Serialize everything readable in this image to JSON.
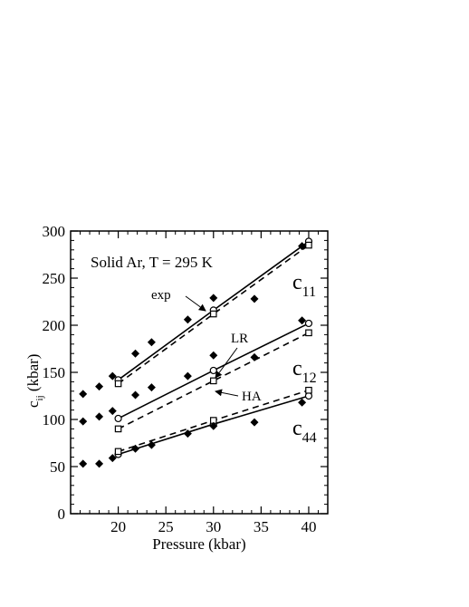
{
  "chart_data": {
    "type": "scatter",
    "annotation_title": "Solid Ar,  T = 295 K",
    "xlabel": "Pressure (kbar)",
    "ylabel_main": "c",
    "ylabel_sub": "ij",
    "ylabel_unit": " (kbar)",
    "xlim": [
      15,
      42
    ],
    "ylim": [
      0,
      300
    ],
    "x_ticks": [
      20,
      25,
      30,
      35,
      40
    ],
    "y_ticks": [
      0,
      50,
      100,
      150,
      200,
      250,
      300
    ],
    "grid": false,
    "experiment": [
      {
        "x": 16.3,
        "y": 98
      },
      {
        "x": 16.3,
        "y": 127
      },
      {
        "x": 16.3,
        "y": 53
      },
      {
        "x": 18.0,
        "y": 103
      },
      {
        "x": 18.0,
        "y": 135
      },
      {
        "x": 18.0,
        "y": 53
      },
      {
        "x": 19.4,
        "y": 109
      },
      {
        "x": 19.4,
        "y": 146
      },
      {
        "x": 19.4,
        "y": 59
      },
      {
        "x": 21.8,
        "y": 126
      },
      {
        "x": 21.8,
        "y": 170
      },
      {
        "x": 21.8,
        "y": 69
      },
      {
        "x": 23.5,
        "y": 134
      },
      {
        "x": 23.5,
        "y": 182
      },
      {
        "x": 23.5,
        "y": 73
      },
      {
        "x": 27.3,
        "y": 146
      },
      {
        "x": 27.3,
        "y": 206
      },
      {
        "x": 27.3,
        "y": 85
      },
      {
        "x": 30.0,
        "y": 168
      },
      {
        "x": 30.0,
        "y": 229
      },
      {
        "x": 30.0,
        "y": 93
      },
      {
        "x": 34.3,
        "y": 166
      },
      {
        "x": 34.3,
        "y": 228
      },
      {
        "x": 34.3,
        "y": 97
      },
      {
        "x": 39.3,
        "y": 205
      },
      {
        "x": 39.3,
        "y": 284
      },
      {
        "x": 39.3,
        "y": 118
      }
    ],
    "series": [
      {
        "name": "C11",
        "LR": [
          [
            20,
            142
          ],
          [
            30,
            216
          ],
          [
            40,
            289
          ]
        ],
        "HA": [
          [
            20,
            138
          ],
          [
            30,
            212
          ],
          [
            40,
            285
          ]
        ]
      },
      {
        "name": "C12",
        "LR": [
          [
            20,
            101
          ],
          [
            30,
            152
          ],
          [
            40,
            202
          ]
        ],
        "HA": [
          [
            20,
            90
          ],
          [
            30,
            141
          ],
          [
            40,
            192
          ]
        ]
      },
      {
        "name": "C44",
        "LR": [
          [
            20,
            63
          ],
          [
            30,
            95
          ],
          [
            40,
            125
          ]
        ],
        "HA": [
          [
            20,
            66
          ],
          [
            30,
            99
          ],
          [
            40,
            131
          ]
        ]
      }
    ],
    "annotations": {
      "exp": "exp",
      "lr": "LR",
      "ha": "HA"
    },
    "curve_labels": [
      {
        "main": "c",
        "sub": "11"
      },
      {
        "main": "c",
        "sub": "12"
      },
      {
        "main": "c",
        "sub": "44"
      }
    ]
  }
}
